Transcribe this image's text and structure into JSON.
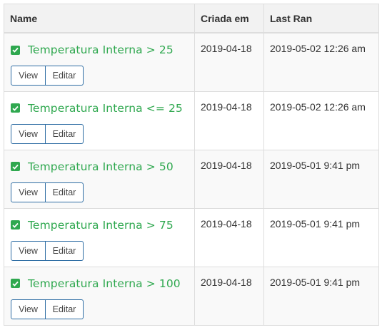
{
  "table": {
    "headers": {
      "name": "Name",
      "created": "Criada em",
      "last_ran": "Last Ran"
    },
    "rows": [
      {
        "name": "Temperatura Interna > 25",
        "created": "2019-04-18",
        "last_ran": "2019-05-02 12:26 am",
        "enabled": true,
        "view_label": "View",
        "edit_label": "Editar"
      },
      {
        "name": "Temperatura Interna <= 25",
        "created": "2019-04-18",
        "last_ran": "2019-05-02 12:26 am",
        "enabled": true,
        "view_label": "View",
        "edit_label": "Editar"
      },
      {
        "name": "Temperatura Interna > 50",
        "created": "2019-04-18",
        "last_ran": "2019-05-01 9:41 pm",
        "enabled": true,
        "view_label": "View",
        "edit_label": "Editar"
      },
      {
        "name": "Temperatura Interna > 75",
        "created": "2019-04-18",
        "last_ran": "2019-05-01 9:41 pm",
        "enabled": true,
        "view_label": "View",
        "edit_label": "Editar"
      },
      {
        "name": "Temperatura Interna > 100",
        "created": "2019-04-18",
        "last_ran": "2019-05-01 9:41 pm",
        "enabled": true,
        "view_label": "View",
        "edit_label": "Editar"
      }
    ]
  },
  "colors": {
    "accent_green": "#2fa84f",
    "button_border": "#2e6da4",
    "header_bg": "#f2f2f2",
    "stripe_bg": "#f9f9f9"
  },
  "icons": {
    "enabled": "checkbox-checked-icon"
  }
}
